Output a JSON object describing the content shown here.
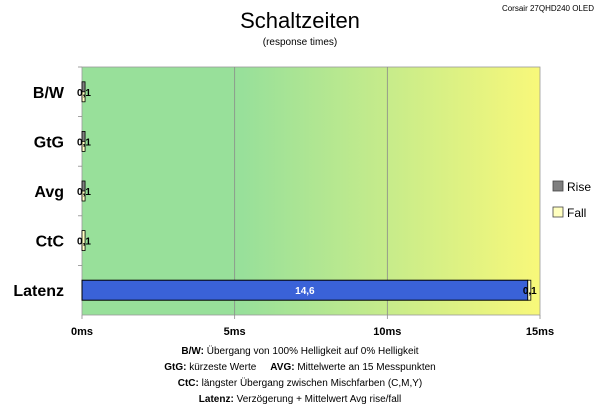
{
  "chart_data": {
    "type": "bar",
    "orientation": "horizontal",
    "title": "Schaltzeiten",
    "subtitle": "(response times)",
    "corner_label": "Corsair 27QHD240  OLED",
    "categories": [
      "B/W",
      "GtG",
      "Avg",
      "CtC",
      "Latenz"
    ],
    "series": [
      {
        "name": "Rise",
        "color": "#7f7f7f",
        "values": [
          0.1,
          0.1,
          0.1,
          null,
          null
        ]
      },
      {
        "name": "Fall",
        "color": "#ffffc0",
        "values": [
          0.1,
          0.1,
          0.1,
          0.1,
          0.1
        ]
      },
      {
        "name": "",
        "color": "#3a62d8",
        "values": [
          null,
          null,
          null,
          null,
          14.6
        ]
      }
    ],
    "data_labels": [
      {
        "category": "B/W",
        "text": "0,1"
      },
      {
        "category": "GtG",
        "text": "0,1"
      },
      {
        "category": "Avg",
        "text": "0,1"
      },
      {
        "category": "CtC",
        "text": "0,1"
      },
      {
        "category": "Latenz",
        "text": "14,6"
      },
      {
        "category": "Latenz",
        "text": "0,1"
      }
    ],
    "xlim": [
      0,
      15
    ],
    "x_ticks": [
      "0ms",
      "5ms",
      "10ms",
      "15ms"
    ],
    "x_tick_values": [
      0,
      5,
      10,
      15
    ],
    "grid": true,
    "legend_position": "right",
    "background_gradient": [
      "#98e09a",
      "#f8f87a"
    ]
  },
  "footnotes": [
    {
      "key": "B/W:",
      "text": "  Übergang von 100% Helligkeit auf 0% Helligkeit"
    },
    {
      "key": "GtG:",
      "text": " kürzeste  Werte",
      "key2": "AVG:",
      "text2": " Mittelwerte an 15 Messpunkten"
    },
    {
      "key": "CtC:",
      "text": " längster Übergang  zwischen Mischfarben (C,M,Y)"
    },
    {
      "key": "Latenz:",
      "text": " Verzögerung  + Mittelwert  Avg rise/fall"
    }
  ]
}
